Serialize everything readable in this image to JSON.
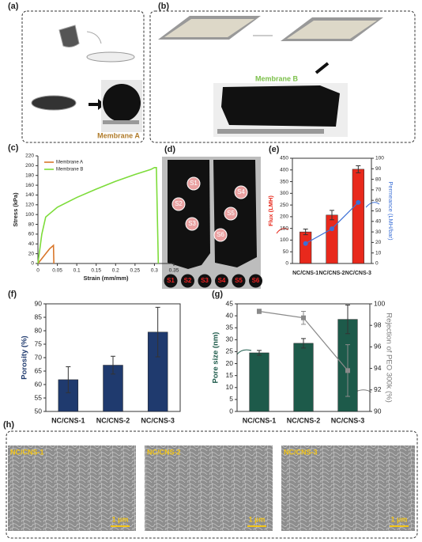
{
  "panel_labels": [
    "(a)",
    "(b)",
    "(c)",
    "(d)",
    "(e)",
    "(f)",
    "(g)",
    "(h)"
  ],
  "panel_a": {
    "caption": "Membrane A"
  },
  "panel_b": {
    "caption": "Membrane B"
  },
  "panel_d": {
    "sample_labels": [
      "S1",
      "S2",
      "S3",
      "S4",
      "S5",
      "S6"
    ],
    "strip_labels": [
      "S1",
      "S2",
      "S3",
      "S4",
      "S5",
      "S6"
    ]
  },
  "panel_h": {
    "images": [
      {
        "label": "NC/CNS-1",
        "scale": "1 µm"
      },
      {
        "label": "NC/CNS-2",
        "scale": "1 µm"
      },
      {
        "label": "NC/CNS-3",
        "scale": "1 µm"
      }
    ]
  },
  "chart_data": [
    {
      "type": "line",
      "xlabel": "Strain (mm/mm)",
      "ylabel": "Stress (kPa)",
      "xlim": [
        0,
        0.35
      ],
      "xticks": [
        0,
        0.05,
        0.1,
        0.15,
        0.2,
        0.25,
        0.3,
        0.35
      ],
      "ylim": [
        0,
        220
      ],
      "yticks": [
        0,
        20,
        40,
        60,
        80,
        100,
        120,
        140,
        160,
        180,
        200,
        220
      ],
      "legend": "upper-left",
      "series": [
        {
          "name": "Membrane A",
          "color": "#d9772b",
          "x": [
            0,
            0.01,
            0.02,
            0.03,
            0.04,
            0.041
          ],
          "values": [
            0,
            10,
            20,
            30,
            37,
            0
          ]
        },
        {
          "name": "Membrane B",
          "color": "#7ddc3a",
          "x": [
            0,
            0.01,
            0.02,
            0.05,
            0.1,
            0.15,
            0.2,
            0.25,
            0.29,
            0.3,
            0.305,
            0.31
          ],
          "values": [
            0,
            60,
            95,
            115,
            135,
            152,
            168,
            182,
            192,
            196,
            196,
            0
          ]
        }
      ]
    },
    {
      "type": "bar",
      "categories": [
        "NC/CNS-1",
        "NC/CNS-2",
        "NC/CNS-3"
      ],
      "ylabel": "Flux (LMH)",
      "ylabel_color": "#e8291c",
      "y2label": "Permeance (LMH/bar)",
      "y2label_color": "#3b6fd6",
      "ylim": [
        0,
        450
      ],
      "yticks": [
        0,
        50,
        100,
        150,
        200,
        250,
        300,
        350,
        400,
        450
      ],
      "y2lim": [
        0,
        100
      ],
      "y2ticks": [
        0,
        10,
        20,
        30,
        40,
        50,
        60,
        70,
        80,
        90,
        100
      ],
      "series": [
        {
          "type": "bar",
          "color": "#e8291c",
          "values": [
            135,
            207,
            403
          ],
          "errors": [
            12,
            20,
            15
          ]
        },
        {
          "type": "point",
          "marker": "circle",
          "color": "#3b6fd6",
          "axis": "y2",
          "connect": true,
          "values": [
            19,
            33,
            58
          ]
        }
      ]
    },
    {
      "type": "bar",
      "categories": [
        "NC/CNS-1",
        "NC/CNS-2",
        "NC/CNS-3"
      ],
      "ylabel": "Porosity (%)",
      "ylabel_color": "#1f3a6e",
      "ylim": [
        50,
        90
      ],
      "yticks": [
        50,
        55,
        60,
        65,
        70,
        75,
        80,
        85,
        90
      ],
      "series": [
        {
          "type": "bar",
          "color": "#1f3a6e",
          "values": [
            61.8,
            67.2,
            79.5
          ],
          "errors": [
            4.8,
            3.3,
            9.2
          ]
        }
      ]
    },
    {
      "type": "bar",
      "categories": [
        "NC/CNS-1",
        "NC/CNS-2",
        "NC/CNS-3"
      ],
      "ylabel": "Pore size (nm)",
      "ylabel_color": "#1d5a4a",
      "y2label": "Rejection of PEO 300k (%)",
      "y2label_color": "#7a7a7a",
      "ylim": [
        0,
        45
      ],
      "yticks": [
        0,
        5,
        10,
        15,
        20,
        25,
        30,
        35,
        40,
        45
      ],
      "y2lim": [
        90,
        100
      ],
      "y2ticks": [
        90,
        92,
        94,
        96,
        98,
        100
      ],
      "series": [
        {
          "type": "bar",
          "color": "#1d5a4a",
          "values": [
            24.5,
            28.5,
            38.5
          ],
          "errors": [
            1,
            2,
            6
          ]
        },
        {
          "type": "point",
          "marker": "square",
          "color": "#8a8a8a",
          "axis": "y2",
          "connect": true,
          "values": [
            99.3,
            98.7,
            93.8
          ],
          "errors": [
            0.2,
            0.6,
            2.4
          ]
        }
      ]
    }
  ]
}
